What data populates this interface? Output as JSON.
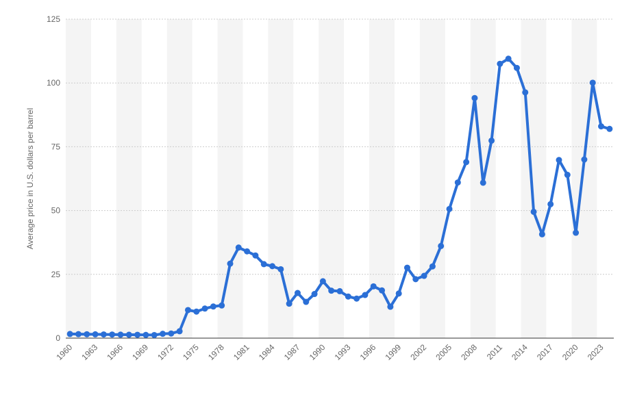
{
  "chart_data": {
    "type": "line",
    "title": "",
    "xlabel": "",
    "ylabel": "Average price in U.S. dollars per barrel",
    "ylim": [
      0,
      125
    ],
    "y_ticks": [
      0,
      25,
      50,
      75,
      100,
      125
    ],
    "x_tick_labels": [
      "1960",
      "1963",
      "1966",
      "1969",
      "1972",
      "1975",
      "1978",
      "1981",
      "1984",
      "1987",
      "1990",
      "1993",
      "1996",
      "1999",
      "2002",
      "2005",
      "2008",
      "2011",
      "2014",
      "2017",
      "2020",
      "2023"
    ],
    "grid": true,
    "legend": "none",
    "colors": {
      "line": "#2b6fd6",
      "grid": "#cccccc",
      "band": "#f4f4f4",
      "axis": "#333333"
    },
    "x": [
      1960,
      1961,
      1962,
      1963,
      1964,
      1965,
      1966,
      1967,
      1968,
      1969,
      1970,
      1971,
      1972,
      1973,
      1974,
      1975,
      1976,
      1977,
      1978,
      1979,
      1980,
      1981,
      1982,
      1983,
      1984,
      1985,
      1986,
      1987,
      1988,
      1989,
      1990,
      1991,
      1992,
      1993,
      1994,
      1995,
      1996,
      1997,
      1998,
      1999,
      2000,
      2001,
      2002,
      2003,
      2004,
      2005,
      2006,
      2007,
      2008,
      2009,
      2010,
      2011,
      2012,
      2013,
      2014,
      2015,
      2016,
      2017,
      2018,
      2019,
      2020,
      2021,
      2022,
      2023,
      2024
    ],
    "values": [
      1.63,
      1.57,
      1.52,
      1.5,
      1.45,
      1.42,
      1.36,
      1.33,
      1.32,
      1.27,
      1.21,
      1.7,
      1.82,
      2.7,
      11.0,
      10.4,
      11.6,
      12.4,
      12.8,
      29.2,
      35.5,
      34.0,
      32.4,
      29.0,
      28.2,
      27.0,
      13.5,
      17.7,
      14.2,
      17.3,
      22.3,
      18.6,
      18.4,
      16.3,
      15.5,
      16.9,
      20.3,
      18.7,
      12.3,
      17.5,
      27.6,
      23.1,
      24.4,
      28.1,
      36.1,
      50.6,
      61.0,
      69.0,
      94.1,
      60.9,
      77.4,
      107.5,
      109.5,
      105.9,
      96.3,
      49.5,
      40.7,
      52.5,
      69.8,
      64.0,
      41.3,
      70.0,
      100.1,
      83.0,
      82.0
    ]
  }
}
